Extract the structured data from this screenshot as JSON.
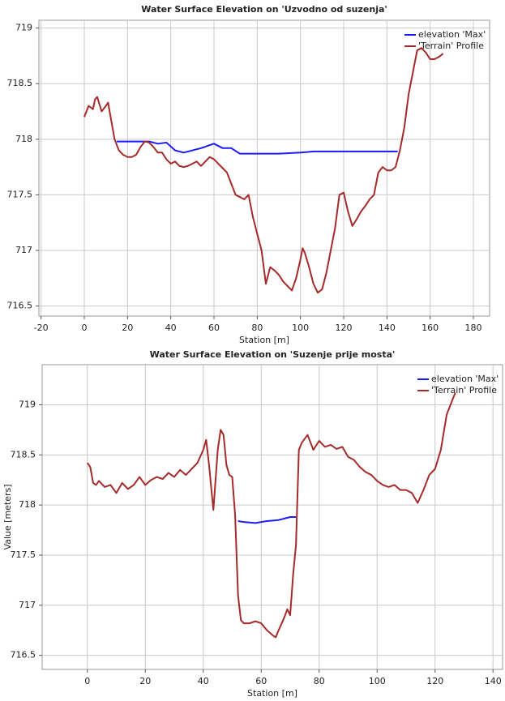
{
  "chart_data": [
    {
      "type": "line",
      "title": "Water Surface Elevation on 'Uzvodno od suzenja'",
      "x_label": "Station [m]",
      "xlim": [
        -21,
        187.5
      ],
      "ylim": [
        716.41,
        719.07
      ],
      "xticks": [
        -20,
        0,
        20,
        40,
        60,
        80,
        100,
        120,
        140,
        160,
        180
      ],
      "yticks": [
        716.5,
        717,
        717.5,
        718,
        718.5,
        719
      ],
      "grid": true,
      "legend": "upper right",
      "series": [
        {
          "name": "elevation 'Max'",
          "color": "#1a1aff",
          "x": [
            15,
            30,
            34,
            38,
            42,
            46,
            50,
            54,
            60,
            64,
            68,
            72,
            80,
            90,
            100,
            106,
            120,
            145
          ],
          "values": [
            717.98,
            717.98,
            717.96,
            717.97,
            717.9,
            717.88,
            717.9,
            717.92,
            717.96,
            717.92,
            717.92,
            717.87,
            717.87,
            717.87,
            717.88,
            717.89,
            717.89,
            717.89
          ]
        },
        {
          "name": "'Terrain' Profile",
          "color": "#a52a2a",
          "x": [
            0,
            2,
            4,
            5,
            6,
            8,
            10,
            11,
            12,
            14,
            16,
            18,
            20,
            22,
            24,
            26,
            28,
            30,
            32,
            34,
            36,
            38,
            40,
            42,
            44,
            46,
            48,
            50,
            52,
            54,
            56,
            58,
            60,
            62,
            64,
            66,
            68,
            70,
            72,
            74,
            76,
            78,
            80,
            82,
            84,
            86,
            88,
            90,
            92,
            94,
            96,
            98,
            100,
            101,
            102,
            104,
            106,
            108,
            110,
            112,
            114,
            116,
            118,
            120,
            122,
            124,
            126,
            128,
            130,
            132,
            134,
            136,
            138,
            140,
            142,
            144,
            146,
            148,
            150,
            152,
            154,
            156,
            158,
            160,
            162,
            164,
            166
          ],
          "values": [
            718.2,
            718.3,
            718.27,
            718.36,
            718.38,
            718.25,
            718.3,
            718.33,
            718.22,
            718.0,
            717.9,
            717.86,
            717.84,
            717.84,
            717.86,
            717.93,
            717.98,
            717.97,
            717.93,
            717.88,
            717.88,
            717.82,
            717.78,
            717.8,
            717.76,
            717.75,
            717.76,
            717.78,
            717.8,
            717.76,
            717.8,
            717.84,
            717.82,
            717.78,
            717.74,
            717.7,
            717.6,
            717.5,
            717.48,
            717.46,
            717.5,
            717.3,
            717.15,
            717.0,
            716.7,
            716.85,
            716.82,
            716.78,
            716.72,
            716.68,
            716.64,
            716.75,
            716.92,
            717.02,
            716.98,
            716.85,
            716.7,
            716.62,
            716.65,
            716.8,
            717.0,
            717.2,
            717.5,
            717.52,
            717.35,
            717.22,
            717.28,
            717.35,
            717.4,
            717.46,
            717.5,
            717.7,
            717.75,
            717.72,
            717.72,
            717.75,
            717.9,
            718.1,
            718.4,
            718.6,
            718.8,
            718.82,
            718.78,
            718.72,
            718.72,
            718.74,
            718.77
          ]
        }
      ]
    },
    {
      "type": "line",
      "title": "Water Surface Elevation on 'Suzenje prije mosta'",
      "x_label": "Station [m]",
      "y_label": "Value [meters]",
      "xlim": [
        -15.6,
        143.3
      ],
      "ylim": [
        716.36,
        719.4
      ],
      "xticks": [
        0,
        20,
        40,
        60,
        80,
        100,
        120,
        140
      ],
      "yticks": [
        716.5,
        717,
        717.5,
        718,
        718.5,
        719
      ],
      "grid": true,
      "legend": "upper right",
      "series": [
        {
          "name": "elevation 'Max'",
          "color": "#1a1aff",
          "x": [
            52,
            54,
            58,
            62,
            66,
            70,
            72
          ],
          "values": [
            717.84,
            717.83,
            717.82,
            717.84,
            717.85,
            717.88,
            717.88
          ]
        },
        {
          "name": "'Terrain' Profile",
          "color": "#a52a2a",
          "x": [
            0,
            1,
            2,
            3,
            4,
            6,
            8,
            10,
            12,
            14,
            16,
            18,
            20,
            22,
            24,
            26,
            28,
            30,
            32,
            34,
            36,
            38,
            40,
            41,
            42,
            43,
            43.5,
            44,
            45,
            46,
            47,
            48,
            49,
            50,
            51,
            52,
            53,
            54,
            56,
            58,
            60,
            62,
            64,
            65,
            66,
            68,
            69,
            70,
            71,
            72,
            73,
            74,
            76,
            78,
            80,
            82,
            84,
            86,
            88,
            90,
            92,
            94,
            96,
            98,
            100,
            102,
            104,
            106,
            108,
            110,
            112,
            114,
            116,
            118,
            120,
            122,
            124,
            126,
            127
          ],
          "values": [
            718.42,
            718.38,
            718.22,
            718.2,
            718.24,
            718.18,
            718.2,
            718.12,
            718.22,
            718.16,
            718.2,
            718.28,
            718.2,
            718.25,
            718.28,
            718.26,
            718.32,
            718.28,
            718.35,
            718.3,
            718.36,
            718.42,
            718.55,
            718.65,
            718.4,
            718.1,
            717.95,
            718.15,
            718.55,
            718.75,
            718.7,
            718.4,
            718.3,
            718.28,
            717.9,
            717.1,
            716.85,
            716.82,
            716.82,
            716.84,
            716.82,
            716.75,
            716.7,
            716.68,
            716.75,
            716.88,
            716.96,
            716.9,
            717.3,
            717.6,
            718.55,
            718.62,
            718.7,
            718.55,
            718.64,
            718.58,
            718.6,
            718.56,
            718.58,
            718.48,
            718.45,
            718.38,
            718.33,
            718.3,
            718.24,
            718.2,
            718.18,
            718.2,
            718.15,
            718.15,
            718.12,
            718.02,
            718.15,
            718.3,
            718.36,
            718.55,
            718.9,
            719.05,
            719.12
          ]
        }
      ]
    }
  ]
}
